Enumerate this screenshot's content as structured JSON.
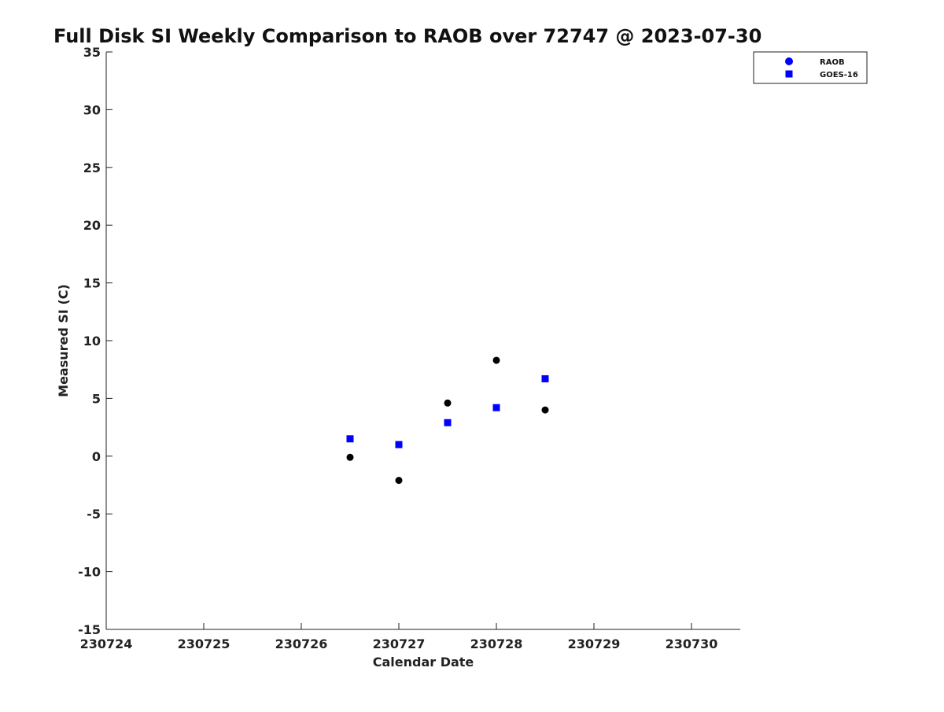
{
  "chart_data": {
    "type": "scatter",
    "title": "Full Disk SI Weekly Comparison to RAOB over 72747 @ 2023-07-30",
    "xlabel": "Calendar Date",
    "ylabel": "Measured SI (C)",
    "xlim": [
      230724,
      230730.5
    ],
    "ylim": [
      -15,
      35
    ],
    "x_ticks": [
      230724,
      230725,
      230726,
      230727,
      230728,
      230729,
      230730
    ],
    "x_tick_labels": [
      "230724",
      "230725",
      "230726",
      "230727",
      "230728",
      "230729",
      "230730"
    ],
    "y_ticks": [
      -15,
      -10,
      -5,
      0,
      5,
      10,
      15,
      20,
      25,
      30,
      35
    ],
    "y_tick_labels": [
      "-15",
      "-10",
      "-5",
      "0",
      "5",
      "10",
      "15",
      "20",
      "25",
      "30",
      "35"
    ],
    "grid": false,
    "legend_position": "top-right",
    "series": [
      {
        "name": "RAOB",
        "marker": "circle",
        "legend_color": "#0000ff",
        "color": "#000000",
        "x": [
          230726.5,
          230727,
          230727.5,
          230728,
          230728.5
        ],
        "y": [
          -0.1,
          -2.1,
          4.6,
          8.3,
          4.0
        ]
      },
      {
        "name": "GOES-16",
        "marker": "square",
        "legend_color": "#0000ff",
        "color": "#0000ff",
        "x": [
          230726.5,
          230727,
          230727.5,
          230728,
          230728.5
        ],
        "y": [
          1.5,
          1.0,
          2.9,
          4.2,
          6.7
        ]
      }
    ]
  }
}
